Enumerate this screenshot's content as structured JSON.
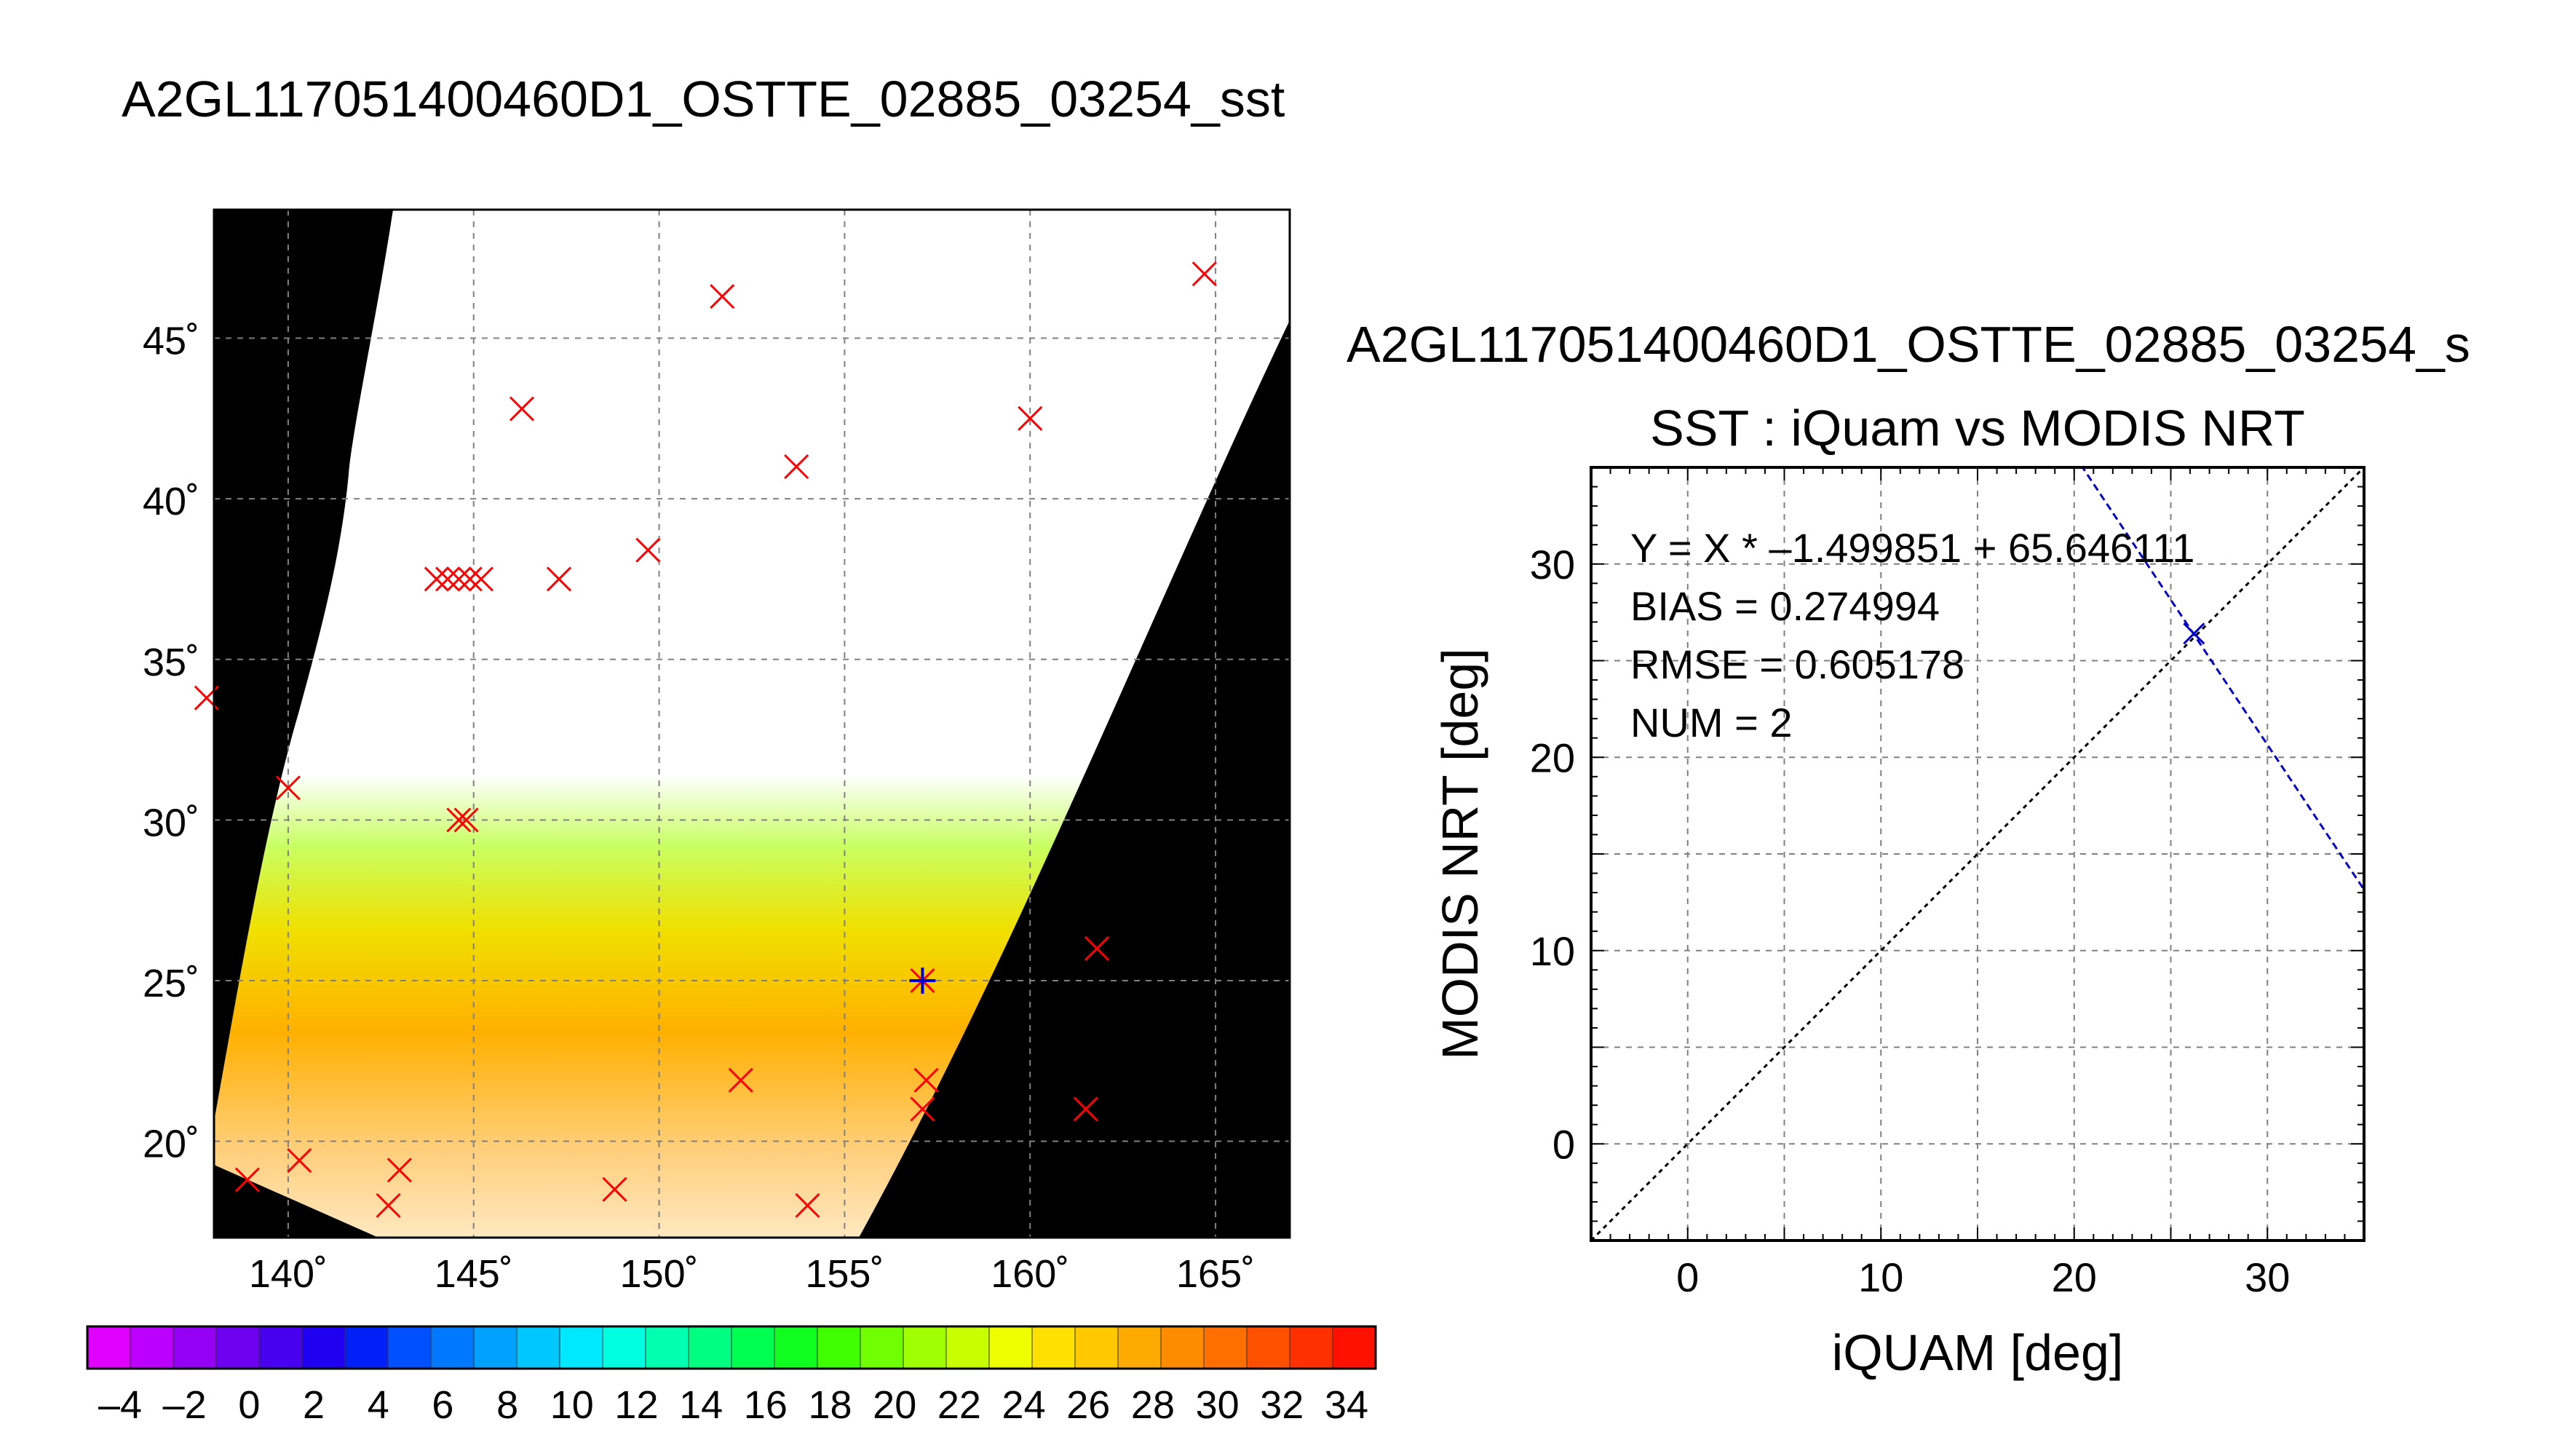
{
  "page_title": "A2GL117051400460D1_OSTTE_02885_03254_sst",
  "map": {
    "lat_labels": [
      "45˚",
      "40˚",
      "35˚",
      "30˚",
      "25˚",
      "20˚"
    ],
    "lon_labels": [
      "140˚",
      "145˚",
      "150˚",
      "155˚",
      "160˚",
      "165˚"
    ],
    "lat_values": [
      45,
      40,
      35,
      30,
      25,
      20
    ],
    "lon_values": [
      140,
      145,
      150,
      155,
      160,
      165
    ],
    "lon_range": [
      138,
      167
    ],
    "lat_range": [
      17,
      49
    ],
    "markers": [
      [
        164.7,
        47.0
      ],
      [
        151.7,
        46.3
      ],
      [
        146.3,
        42.8
      ],
      [
        160.0,
        42.5
      ],
      [
        153.7,
        41.0
      ],
      [
        149.7,
        38.4
      ],
      [
        147.3,
        37.5
      ],
      [
        144.0,
        37.5
      ],
      [
        144.3,
        37.5
      ],
      [
        144.6,
        37.5
      ],
      [
        144.9,
        37.5
      ],
      [
        145.2,
        37.5
      ],
      [
        137.8,
        33.8
      ],
      [
        140.0,
        31.0
      ],
      [
        144.6,
        30.0
      ],
      [
        144.8,
        30.0
      ],
      [
        161.8,
        26.0
      ],
      [
        157.1,
        25.0
      ],
      [
        157.2,
        21.9
      ],
      [
        157.1,
        21.0
      ],
      [
        161.5,
        21.0
      ],
      [
        152.2,
        21.9
      ],
      [
        138.9,
        18.8
      ],
      [
        140.3,
        19.4
      ],
      [
        143.0,
        19.1
      ],
      [
        142.7,
        18.0
      ],
      [
        148.8,
        18.5
      ],
      [
        154.0,
        18.0
      ]
    ],
    "matched_marker": [
      157.1,
      25.0
    ]
  },
  "colorbar": {
    "labels": [
      "–4",
      "–2",
      "0",
      "2",
      "4",
      "6",
      "8",
      "10",
      "12",
      "14",
      "16",
      "18",
      "20",
      "22",
      "24",
      "26",
      "28",
      "30",
      "32",
      "34"
    ],
    "range": [
      -5,
      35
    ],
    "colors": [
      "#e000ff",
      "#bb00ff",
      "#9400f4",
      "#6e00f0",
      "#4800ee",
      "#2000f0",
      "#0020f8",
      "#0050ff",
      "#0078ff",
      "#00a0ff",
      "#00c8ff",
      "#00e8ff",
      "#00ffe0",
      "#00ffb0",
      "#00ff80",
      "#00ff50",
      "#10ff20",
      "#40ff00",
      "#70ff00",
      "#a0ff00",
      "#c8ff00",
      "#f0ff00",
      "#ffe000",
      "#ffc800",
      "#ffaa00",
      "#ff8c00",
      "#ff6e00",
      "#ff5000",
      "#ff3000",
      "#ff1000"
    ]
  },
  "chart_data": {
    "type": "scatter",
    "title": "SST : iQuam vs MODIS NRT",
    "suptitle": "A2GL117051400460D1_OSTTE_02885_03254_s",
    "xlabel": "iQUAM [deg]",
    "ylabel": "MODIS NRT [deg]",
    "xlim": [
      -5,
      35
    ],
    "ylim": [
      -5,
      35
    ],
    "xticks": [
      0,
      10,
      20,
      30
    ],
    "yticks": [
      0,
      10,
      20,
      30
    ],
    "x_tick_labels": [
      "0",
      "10",
      "20",
      "30"
    ],
    "y_tick_labels": [
      "0",
      "10",
      "20",
      "30"
    ],
    "grid": true,
    "stats": [
      "Y = X * –1.499851 + 65.646111",
      "BIAS = 0.274994",
      "RMSE = 0.605178",
      "NUM = 2"
    ],
    "points": [
      {
        "x": 26.2,
        "y": 26.4
      }
    ],
    "fit": {
      "slope": -1.499851,
      "intercept": 65.646111
    },
    "reference_line": "y = x",
    "colors": {
      "fit": "#0000cc",
      "point": "#0000cc",
      "reference": "#000000"
    }
  }
}
